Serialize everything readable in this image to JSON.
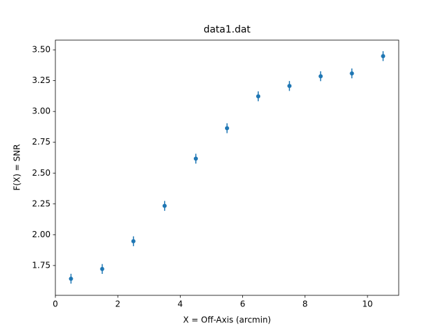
{
  "chart_data": {
    "type": "errorbar",
    "title": "data1.dat",
    "x_label": "X = Off-Axis (arcmin)",
    "y_label": "F(X) = SNR",
    "x": [
      0.5,
      1.5,
      2.5,
      3.5,
      4.5,
      5.5,
      6.5,
      7.5,
      8.5,
      9.5,
      10.5
    ],
    "values": [
      1.643,
      1.722,
      1.947,
      2.234,
      2.617,
      2.864,
      3.123,
      3.207,
      3.286,
      3.309,
      3.449
    ],
    "errors": [
      0.04,
      0.04,
      0.04,
      0.04,
      0.04,
      0.04,
      0.04,
      0.04,
      0.04,
      0.04,
      0.04
    ],
    "color": "#1f77b4",
    "xlim": [
      0,
      11
    ],
    "xticks": [
      0,
      2,
      4,
      6,
      8,
      10
    ],
    "ylim": [
      1.508,
      3.579
    ],
    "yticks": [
      1.75,
      {
        "value": 2,
        "label": "2.00"
      },
      2.25,
      {
        "value": 2.5,
        "label": "2.50"
      },
      2.75,
      {
        "value": 3,
        "label": "3.00"
      },
      3.25,
      {
        "value": 3.5,
        "label": "3.50"
      }
    ],
    "grid": false
  }
}
